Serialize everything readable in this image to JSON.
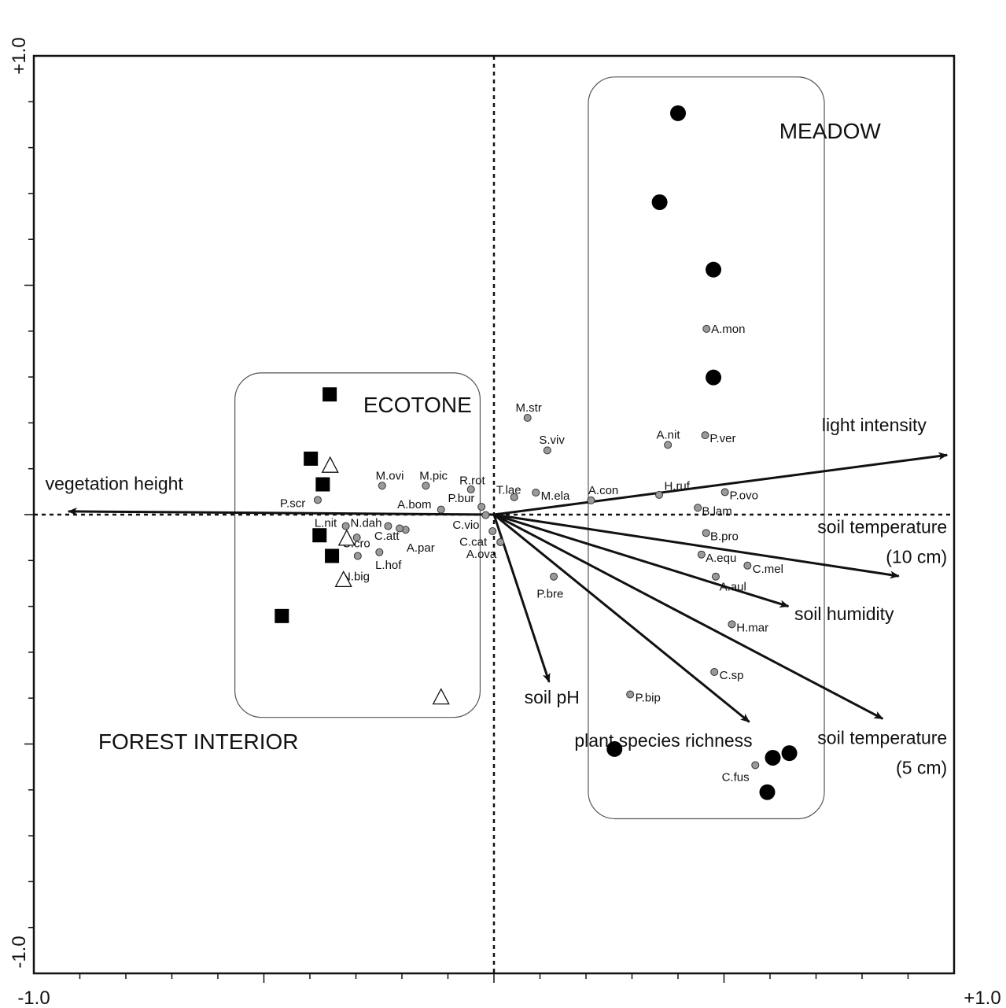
{
  "chart_data": {
    "type": "scatter",
    "title": "",
    "xlabel": "",
    "ylabel": "",
    "xlim": [
      -1.0,
      1.0
    ],
    "ylim": [
      -1.0,
      1.0
    ],
    "grid": false,
    "axis_labels": {
      "x_min": "-1.0",
      "x_max": "+1.0",
      "y_min": "-1.0",
      "y_max": "+1.0"
    },
    "group_labels": [
      {
        "id": "meadow",
        "text": "MEADOW",
        "x": 0.62,
        "y": 0.82
      },
      {
        "id": "ecotone",
        "text": "ECOTONE",
        "x": -0.284,
        "y": 0.223
      },
      {
        "id": "forest",
        "text": "FOREST INTERIOR",
        "x": -0.86,
        "y": -0.511
      }
    ],
    "group_boxes": [
      {
        "id": "meadow-box",
        "x0": 0.205,
        "x1": 0.718,
        "y0": -0.663,
        "y1": 0.954
      },
      {
        "id": "ecotone-box",
        "x0": -0.563,
        "x1": -0.03,
        "y0": -0.442,
        "y1": 0.309
      }
    ],
    "plots": {
      "meadow": [
        {
          "x": 0.4,
          "y": 0.875
        },
        {
          "x": 0.36,
          "y": 0.681
        },
        {
          "x": 0.477,
          "y": 0.534
        },
        {
          "x": 0.477,
          "y": 0.299
        },
        {
          "x": 0.262,
          "y": -0.511
        },
        {
          "x": 0.606,
          "y": -0.53
        },
        {
          "x": 0.642,
          "y": -0.52
        },
        {
          "x": 0.594,
          "y": -0.605
        }
      ],
      "ecotone": [
        {
          "x": -0.356,
          "y": 0.106
        },
        {
          "x": -0.32,
          "y": -0.053
        },
        {
          "x": -0.327,
          "y": -0.143
        },
        {
          "x": -0.115,
          "y": -0.399
        }
      ],
      "forest": [
        {
          "x": -0.357,
          "y": 0.262
        },
        {
          "x": -0.398,
          "y": 0.122
        },
        {
          "x": -0.372,
          "y": 0.066
        },
        {
          "x": -0.379,
          "y": -0.045
        },
        {
          "x": -0.352,
          "y": -0.09
        },
        {
          "x": -0.461,
          "y": -0.221
        }
      ]
    },
    "species": [
      {
        "name": "A.mon",
        "x": 0.462,
        "y": 0.405,
        "lx": 0.472,
        "ly": 0.405,
        "anchor": "start"
      },
      {
        "name": "M.str",
        "x": 0.073,
        "y": 0.211,
        "lx": 0.047,
        "ly": 0.233,
        "anchor": "start"
      },
      {
        "name": "S.viv",
        "x": 0.116,
        "y": 0.14,
        "lx": 0.098,
        "ly": 0.163,
        "anchor": "start"
      },
      {
        "name": "A.nit",
        "x": 0.378,
        "y": 0.152,
        "lx": 0.353,
        "ly": 0.174,
        "anchor": "start"
      },
      {
        "name": "P.ver",
        "x": 0.459,
        "y": 0.173,
        "lx": 0.469,
        "ly": 0.166,
        "anchor": "start"
      },
      {
        "name": "M.ovi",
        "x": -0.243,
        "y": 0.063,
        "lx": -0.257,
        "ly": 0.085,
        "anchor": "start"
      },
      {
        "name": "M.pic",
        "x": -0.148,
        "y": 0.063,
        "lx": -0.162,
        "ly": 0.085,
        "anchor": "start"
      },
      {
        "name": "R.rot",
        "x": -0.05,
        "y": 0.055,
        "lx": -0.075,
        "ly": 0.075,
        "anchor": "start"
      },
      {
        "name": "T.lae",
        "x": 0.044,
        "y": 0.038,
        "lx": 0.005,
        "ly": 0.054,
        "anchor": "start"
      },
      {
        "name": "M.ela",
        "x": 0.091,
        "y": 0.048,
        "lx": 0.102,
        "ly": 0.041,
        "anchor": "start"
      },
      {
        "name": "A.con",
        "x": 0.211,
        "y": 0.031,
        "lx": 0.205,
        "ly": 0.053,
        "anchor": "start"
      },
      {
        "name": "H.ruf",
        "x": 0.359,
        "y": 0.043,
        "lx": 0.37,
        "ly": 0.063,
        "anchor": "start"
      },
      {
        "name": "P.ovo",
        "x": 0.502,
        "y": 0.049,
        "lx": 0.512,
        "ly": 0.042,
        "anchor": "start"
      },
      {
        "name": "B.lam",
        "x": 0.443,
        "y": 0.015,
        "lx": 0.452,
        "ly": 0.008,
        "anchor": "start"
      },
      {
        "name": "P.scr",
        "x": -0.383,
        "y": 0.032,
        "lx": -0.465,
        "ly": 0.025,
        "anchor": "start"
      },
      {
        "name": "A.bom",
        "x": -0.115,
        "y": 0.011,
        "lx": -0.21,
        "ly": 0.022,
        "anchor": "start"
      },
      {
        "name": "P.bur",
        "x": -0.027,
        "y": 0.017,
        "lx": -0.1,
        "ly": 0.036,
        "anchor": "start"
      },
      {
        "name": "L.nit",
        "x": -0.322,
        "y": -0.025,
        "lx": -0.39,
        "ly": -0.018,
        "anchor": "start"
      },
      {
        "name": "N.dah",
        "x": -0.23,
        "y": -0.025,
        "lx": -0.312,
        "ly": -0.018,
        "anchor": "start"
      },
      {
        "name": "C.vio",
        "x": -0.018,
        "y": -0.001,
        "lx": -0.09,
        "ly": -0.022,
        "anchor": "start"
      },
      {
        "name": "C.cat",
        "x": -0.003,
        "y": -0.036,
        "lx": -0.075,
        "ly": -0.059,
        "anchor": "start"
      },
      {
        "name": "C.att",
        "x": -0.192,
        "y": -0.033,
        "lx": -0.26,
        "ly": -0.046,
        "anchor": "start"
      },
      {
        "name": "A.par",
        "x": -0.205,
        "y": -0.03,
        "lx": -0.19,
        "ly": -0.072,
        "anchor": "start"
      },
      {
        "name": "C.cro",
        "x": -0.298,
        "y": -0.05,
        "lx": -0.33,
        "ly": -0.063,
        "anchor": "start"
      },
      {
        "name": "A.ova",
        "x": 0.014,
        "y": -0.06,
        "lx": -0.06,
        "ly": -0.086,
        "anchor": "start"
      },
      {
        "name": "N.big",
        "x": -0.296,
        "y": -0.09,
        "lx": -0.33,
        "ly": -0.135,
        "anchor": "start"
      },
      {
        "name": "L.hof",
        "x": -0.249,
        "y": -0.082,
        "lx": -0.258,
        "ly": -0.11,
        "anchor": "start"
      },
      {
        "name": "B.pro",
        "x": 0.461,
        "y": -0.04,
        "lx": 0.47,
        "ly": -0.047,
        "anchor": "start"
      },
      {
        "name": "A.equ",
        "x": 0.451,
        "y": -0.087,
        "lx": 0.46,
        "ly": -0.094,
        "anchor": "start"
      },
      {
        "name": "C.mel",
        "x": 0.551,
        "y": -0.111,
        "lx": 0.562,
        "ly": -0.118,
        "anchor": "start"
      },
      {
        "name": "A.aul",
        "x": 0.482,
        "y": -0.135,
        "lx": 0.49,
        "ly": -0.157,
        "anchor": "start"
      },
      {
        "name": "P.bre",
        "x": 0.13,
        "y": -0.135,
        "lx": 0.093,
        "ly": -0.172,
        "anchor": "start"
      },
      {
        "name": "H.mar",
        "x": 0.517,
        "y": -0.239,
        "lx": 0.527,
        "ly": -0.246,
        "anchor": "start"
      },
      {
        "name": "C.sp",
        "x": 0.479,
        "y": -0.343,
        "lx": 0.49,
        "ly": -0.35,
        "anchor": "start"
      },
      {
        "name": "P.bip",
        "x": 0.296,
        "y": -0.392,
        "lx": 0.307,
        "ly": -0.399,
        "anchor": "start"
      },
      {
        "name": "C.fus",
        "x": 0.568,
        "y": -0.546,
        "lx": 0.495,
        "ly": -0.572,
        "anchor": "start"
      }
    ],
    "vectors": [
      {
        "name": "light intensity",
        "label_lines": [
          "light intensity"
        ],
        "x": 0.985,
        "y": 0.13,
        "lx": 0.94,
        "ly": 0.182,
        "anchor": "end"
      },
      {
        "name": "vegetation height",
        "label_lines": [
          "vegetation height"
        ],
        "x": -0.925,
        "y": 0.007,
        "lx": -0.975,
        "ly": 0.054,
        "anchor": "start"
      },
      {
        "name": "soil temperature (10 cm)",
        "label_lines": [
          "soil temperature",
          "(10 cm)"
        ],
        "x": 0.88,
        "y": -0.134,
        "lx": 0.985,
        "ly": -0.04,
        "anchor": "end"
      },
      {
        "name": "soil humidity",
        "label_lines": [
          "soil humidity"
        ],
        "x": 0.64,
        "y": -0.2,
        "lx": 0.653,
        "ly": -0.23,
        "anchor": "start"
      },
      {
        "name": "soil pH",
        "label_lines": [
          "soil pH"
        ],
        "x": 0.12,
        "y": -0.365,
        "lx": 0.066,
        "ly": -0.412,
        "anchor": "start"
      },
      {
        "name": "plant species richness",
        "label_lines": [
          "plant species richness"
        ],
        "x": 0.555,
        "y": -0.452,
        "lx": 0.175,
        "ly": -0.506,
        "anchor": "start"
      },
      {
        "name": "soil temperature (5 cm)",
        "label_lines": [
          "soil temperature",
          "(5 cm)"
        ],
        "x": 0.845,
        "y": -0.445,
        "lx": 0.985,
        "ly": -0.5,
        "anchor": "end"
      }
    ]
  }
}
